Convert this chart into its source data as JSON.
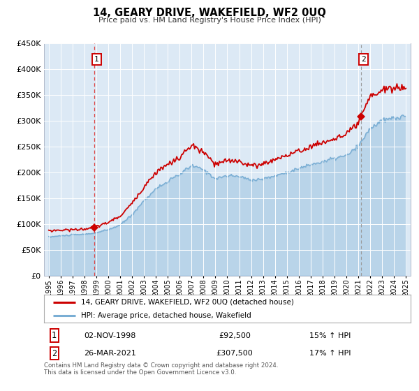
{
  "title": "14, GEARY DRIVE, WAKEFIELD, WF2 0UQ",
  "subtitle": "Price paid vs. HM Land Registry's House Price Index (HPI)",
  "legend_line1": "14, GEARY DRIVE, WAKEFIELD, WF2 0UQ (detached house)",
  "legend_line2": "HPI: Average price, detached house, Wakefield",
  "sale1_date": "02-NOV-1998",
  "sale1_price": "£92,500",
  "sale1_hpi": "15% ↑ HPI",
  "sale2_date": "26-MAR-2021",
  "sale2_price": "£307,500",
  "sale2_hpi": "17% ↑ HPI",
  "footer1": "Contains HM Land Registry data © Crown copyright and database right 2024.",
  "footer2": "This data is licensed under the Open Government Licence v3.0.",
  "hpi_color": "#7aaed4",
  "sold_color": "#cc0000",
  "vline_color": "#dd4444",
  "plot_bg": "#dce9f5",
  "marker_color": "#cc0000",
  "ylim_min": 0,
  "ylim_max": 450000,
  "yticks": [
    0,
    50000,
    100000,
    150000,
    200000,
    250000,
    300000,
    350000,
    400000,
    450000
  ],
  "sale1_year": 1998.83,
  "sale1_value": 92500,
  "sale2_year": 2021.23,
  "sale2_value": 307500,
  "hpi_anchors": {
    "1995.0": 75000,
    "1996.0": 77000,
    "1997.0": 79000,
    "1998.0": 80000,
    "1999.0": 83000,
    "2000.0": 89000,
    "2001.0": 98000,
    "2002.0": 118000,
    "2003.0": 145000,
    "2004.0": 168000,
    "2005.0": 182000,
    "2006.0": 196000,
    "2007.0": 213000,
    "2008.0": 205000,
    "2009.0": 188000,
    "2010.0": 193000,
    "2011.0": 192000,
    "2012.0": 185000,
    "2013.0": 187000,
    "2014.0": 193000,
    "2015.0": 200000,
    "2016.0": 207000,
    "2017.0": 215000,
    "2018.0": 220000,
    "2019.0": 227000,
    "2020.0": 232000,
    "2021.0": 250000,
    "2022.0": 285000,
    "2023.0": 300000,
    "2024.0": 305000,
    "2025.0": 308000
  },
  "sold_anchors": {
    "1995.0": 87000,
    "1996.0": 88000,
    "1997.0": 89000,
    "1998.0": 90000,
    "1999.0": 95000,
    "2000.0": 103000,
    "2001.0": 115000,
    "2002.0": 140000,
    "2003.0": 172000,
    "2004.0": 200000,
    "2005.0": 215000,
    "2006.0": 228000,
    "2007.0": 252000,
    "2008.0": 238000,
    "2009.0": 215000,
    "2010.0": 222000,
    "2011.0": 222000,
    "2012.0": 212000,
    "2013.0": 216000,
    "2014.0": 225000,
    "2015.0": 233000,
    "2016.0": 240000,
    "2017.0": 250000,
    "2018.0": 257000,
    "2019.0": 265000,
    "2020.0": 272000,
    "2021.0": 295000,
    "2022.0": 345000,
    "2023.0": 360000,
    "2024.0": 362000,
    "2025.0": 365000
  }
}
